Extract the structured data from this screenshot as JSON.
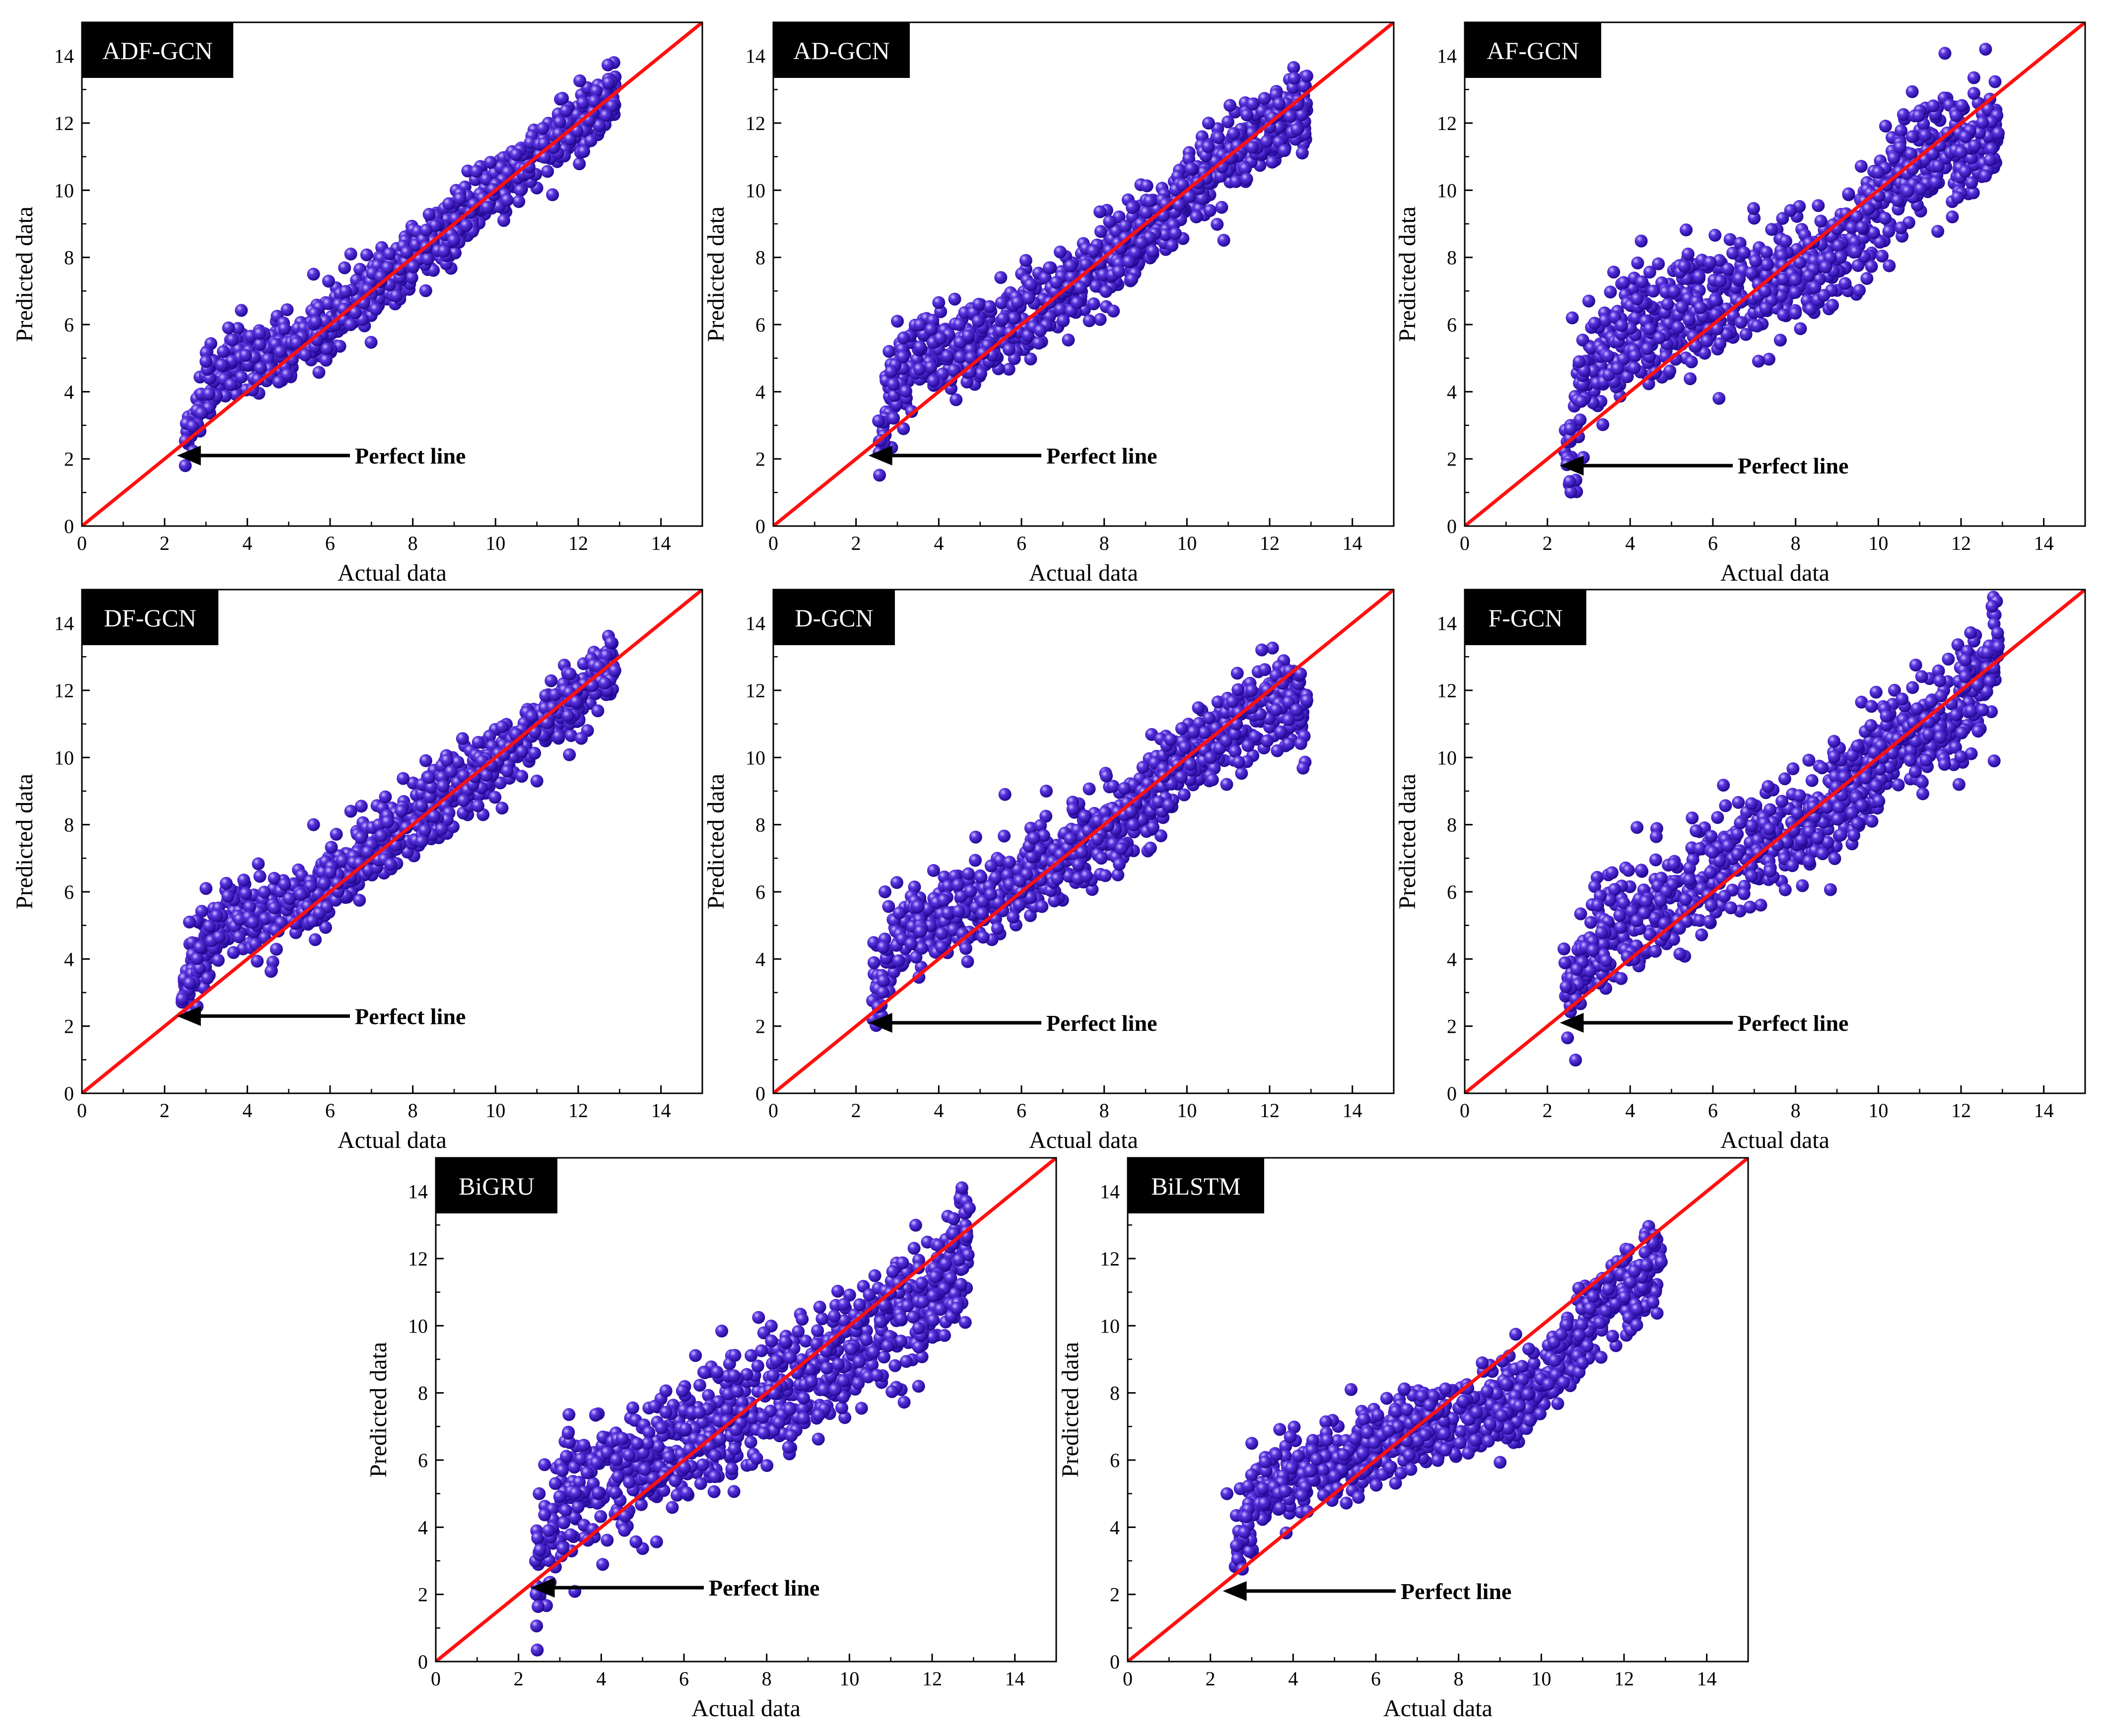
{
  "figure": {
    "arrow_label": "Perfect line",
    "marker_color": "#3a0fc0",
    "marker_highlight": "#9a8cff",
    "line_color": "#ff1010",
    "text_color": "#000000"
  },
  "chart_data": [
    {
      "type": "scatter",
      "title": "ADF-GCN",
      "xlabel": "Actual data",
      "ylabel": "Predicted data",
      "xlim": [
        0,
        15
      ],
      "ylim": [
        0,
        15
      ],
      "xticks": [
        0,
        2,
        4,
        6,
        8,
        10,
        12,
        14
      ],
      "yticks": [
        0,
        2,
        4,
        6,
        8,
        10,
        12,
        14
      ],
      "perfect_line": [
        [
          0,
          0
        ],
        [
          15,
          15
        ]
      ],
      "annotation": {
        "text": "Perfect line",
        "arrow_tip": [
          2.3,
          2.1
        ]
      },
      "spread": 0.45,
      "outliers": [
        [
          2.5,
          1.8
        ],
        [
          5.6,
          7.5
        ],
        [
          6.5,
          8.1
        ],
        [
          10.2,
          9.1
        ],
        [
          3.0,
          4.9
        ]
      ],
      "points": [
        [
          2.5,
          2.6
        ],
        [
          3.0,
          4.2
        ],
        [
          3.5,
          4.8
        ],
        [
          4.0,
          5.0
        ],
        [
          5.0,
          5.3
        ],
        [
          6.0,
          6.0
        ],
        [
          7.0,
          7.0
        ],
        [
          8.0,
          8.0
        ],
        [
          9.0,
          9.0
        ],
        [
          10.0,
          10.0
        ],
        [
          11.0,
          11.1
        ],
        [
          12.0,
          12.0
        ],
        [
          12.9,
          13.0
        ]
      ]
    },
    {
      "type": "scatter",
      "title": "AD-GCN",
      "xlabel": "Actual data",
      "ylabel": "Predicted data",
      "xlim": [
        0,
        15
      ],
      "ylim": [
        0,
        15
      ],
      "xticks": [
        0,
        2,
        4,
        6,
        8,
        10,
        12,
        14
      ],
      "yticks": [
        0,
        2,
        4,
        6,
        8,
        10,
        12,
        14
      ],
      "perfect_line": [
        [
          0,
          0
        ],
        [
          15,
          15
        ]
      ],
      "annotation": {
        "text": "Perfect line",
        "arrow_tip": [
          2.3,
          2.1
        ]
      },
      "spread": 0.6,
      "outliers": [
        [
          2.8,
          5.2
        ],
        [
          3.0,
          6.1
        ],
        [
          5.5,
          7.4
        ],
        [
          12.9,
          13.4
        ],
        [
          12.5,
          12.2
        ]
      ],
      "points": [
        [
          2.5,
          2.4
        ],
        [
          3.0,
          4.5
        ],
        [
          3.5,
          5.0
        ],
        [
          4.0,
          5.2
        ],
        [
          5.0,
          5.6
        ],
        [
          6.0,
          6.2
        ],
        [
          7.0,
          7.0
        ],
        [
          8.0,
          7.9
        ],
        [
          9.0,
          8.9
        ],
        [
          10.0,
          10.0
        ],
        [
          11.0,
          11.0
        ],
        [
          12.0,
          12.0
        ],
        [
          12.9,
          12.3
        ]
      ]
    },
    {
      "type": "scatter",
      "title": "AF-GCN",
      "xlabel": "Actual data",
      "ylabel": "Predicted data",
      "xlim": [
        0,
        15
      ],
      "ylim": [
        0,
        15
      ],
      "xticks": [
        0,
        2,
        4,
        6,
        8,
        10,
        12,
        14
      ],
      "yticks": [
        0,
        2,
        4,
        6,
        8,
        10,
        12,
        14
      ],
      "perfect_line": [
        [
          0,
          0
        ],
        [
          15,
          15
        ]
      ],
      "annotation": {
        "text": "Perfect line",
        "arrow_tip": [
          2.3,
          1.8
        ]
      },
      "spread": 0.85,
      "outliers": [
        [
          2.6,
          6.2
        ],
        [
          3.0,
          6.7
        ],
        [
          5.4,
          8.1
        ],
        [
          12.9,
          11.7
        ],
        [
          12.7,
          10.9
        ]
      ],
      "points": [
        [
          2.4,
          1.8
        ],
        [
          3.0,
          4.5
        ],
        [
          3.5,
          5.5
        ],
        [
          4.0,
          5.8
        ],
        [
          5.0,
          6.1
        ],
        [
          6.0,
          6.8
        ],
        [
          7.0,
          7.2
        ],
        [
          8.0,
          7.5
        ],
        [
          9.0,
          8.2
        ],
        [
          10.0,
          9.6
        ],
        [
          11.0,
          10.9
        ],
        [
          12.0,
          11.3
        ],
        [
          12.9,
          11.6
        ]
      ]
    },
    {
      "type": "scatter",
      "title": "DF-GCN",
      "xlabel": "Actual data",
      "ylabel": "Predicted data",
      "xlim": [
        0,
        15
      ],
      "ylim": [
        0,
        15
      ],
      "xticks": [
        0,
        2,
        4,
        6,
        8,
        10,
        12,
        14
      ],
      "yticks": [
        0,
        2,
        4,
        6,
        8,
        10,
        12,
        14
      ],
      "perfect_line": [
        [
          0,
          0
        ],
        [
          15,
          15
        ]
      ],
      "annotation": {
        "text": "Perfect line",
        "arrow_tip": [
          2.3,
          2.3
        ]
      },
      "spread": 0.55,
      "outliers": [
        [
          2.6,
          5.1
        ],
        [
          3.0,
          6.1
        ],
        [
          5.6,
          8.0
        ],
        [
          6.5,
          8.4
        ],
        [
          11.0,
          9.3
        ]
      ],
      "points": [
        [
          2.4,
          2.9
        ],
        [
          3.0,
          4.4
        ],
        [
          3.5,
          5.0
        ],
        [
          4.0,
          5.1
        ],
        [
          5.0,
          5.5
        ],
        [
          6.0,
          6.2
        ],
        [
          7.0,
          7.2
        ],
        [
          8.0,
          8.2
        ],
        [
          9.0,
          9.1
        ],
        [
          10.0,
          10.0
        ],
        [
          11.0,
          11.0
        ],
        [
          12.0,
          11.8
        ],
        [
          12.9,
          12.8
        ]
      ]
    },
    {
      "type": "scatter",
      "title": "D-GCN",
      "xlabel": "Actual data",
      "ylabel": "Predicted data",
      "xlim": [
        0,
        15
      ],
      "ylim": [
        0,
        15
      ],
      "xticks": [
        0,
        2,
        4,
        6,
        8,
        10,
        12,
        14
      ],
      "yticks": [
        0,
        2,
        4,
        6,
        8,
        10,
        12,
        14
      ],
      "perfect_line": [
        [
          0,
          0
        ],
        [
          15,
          15
        ]
      ],
      "annotation": {
        "text": "Perfect line",
        "arrow_tip": [
          2.3,
          2.1
        ]
      },
      "spread": 0.65,
      "outliers": [
        [
          2.7,
          6.0
        ],
        [
          5.6,
          8.9
        ],
        [
          6.6,
          9.0
        ],
        [
          6.3,
          7.6
        ],
        [
          12.9,
          11.7
        ]
      ],
      "points": [
        [
          2.4,
          2.8
        ],
        [
          3.0,
          4.6
        ],
        [
          3.5,
          5.0
        ],
        [
          4.0,
          5.2
        ],
        [
          5.0,
          5.6
        ],
        [
          6.0,
          6.3
        ],
        [
          7.0,
          7.0
        ],
        [
          8.0,
          7.8
        ],
        [
          9.0,
          8.8
        ],
        [
          10.0,
          9.8
        ],
        [
          11.0,
          10.8
        ],
        [
          12.0,
          11.6
        ],
        [
          12.9,
          11.7
        ]
      ]
    },
    {
      "type": "scatter",
      "title": "F-GCN",
      "xlabel": "Actual data",
      "ylabel": "Predicted data",
      "xlim": [
        0,
        15
      ],
      "ylim": [
        0,
        15
      ],
      "xticks": [
        0,
        2,
        4,
        6,
        8,
        10,
        12,
        14
      ],
      "yticks": [
        0,
        2,
        4,
        6,
        8,
        10,
        12,
        14
      ],
      "perfect_line": [
        [
          0,
          0
        ],
        [
          15,
          15
        ]
      ],
      "annotation": {
        "text": "Perfect line",
        "arrow_tip": [
          2.3,
          2.1
        ]
      },
      "spread": 0.8,
      "outliers": [
        [
          2.4,
          4.3
        ],
        [
          5.5,
          8.2
        ],
        [
          12.9,
          13.3
        ],
        [
          12.8,
          9.9
        ],
        [
          11.5,
          10.6
        ]
      ],
      "points": [
        [
          2.4,
          2.6
        ],
        [
          3.0,
          4.3
        ],
        [
          3.5,
          5.0
        ],
        [
          4.0,
          5.2
        ],
        [
          5.0,
          5.8
        ],
        [
          6.0,
          6.5
        ],
        [
          7.0,
          7.4
        ],
        [
          8.0,
          7.8
        ],
        [
          9.0,
          8.6
        ],
        [
          10.0,
          10.0
        ],
        [
          11.0,
          10.8
        ],
        [
          12.0,
          11.5
        ],
        [
          12.9,
          13.3
        ]
      ]
    },
    {
      "type": "scatter",
      "title": "BiGRU",
      "xlabel": "Actual data",
      "ylabel": "Predicted data",
      "xlim": [
        0,
        15
      ],
      "ylim": [
        0,
        15
      ],
      "xticks": [
        0,
        2,
        4,
        6,
        8,
        10,
        12,
        14
      ],
      "yticks": [
        0,
        2,
        4,
        6,
        8,
        10,
        12,
        14
      ],
      "perfect_line": [
        [
          0,
          0
        ],
        [
          15,
          15
        ]
      ],
      "annotation": {
        "text": "Perfect line",
        "arrow_tip": [
          2.3,
          2.2
        ]
      },
      "spread": 0.9,
      "outliers": [
        [
          2.5,
          5.0
        ],
        [
          3.2,
          6.8
        ],
        [
          6.5,
          8.6
        ],
        [
          12.9,
          13.5
        ],
        [
          12.8,
          10.1
        ]
      ],
      "points": [
        [
          2.4,
          2.3
        ],
        [
          3.0,
          4.7
        ],
        [
          3.5,
          5.2
        ],
        [
          4.0,
          5.4
        ],
        [
          5.0,
          5.9
        ],
        [
          6.0,
          6.5
        ],
        [
          7.0,
          7.2
        ],
        [
          8.0,
          7.8
        ],
        [
          9.0,
          8.4
        ],
        [
          10.0,
          9.2
        ],
        [
          11.0,
          10.0
        ],
        [
          12.0,
          10.8
        ],
        [
          12.9,
          12.4
        ]
      ]
    },
    {
      "type": "scatter",
      "title": "BiLSTM",
      "xlabel": "Actual data",
      "ylabel": "Predicted data",
      "xlim": [
        0,
        15
      ],
      "ylim": [
        0,
        15
      ],
      "xticks": [
        0,
        2,
        4,
        6,
        8,
        10,
        12,
        14
      ],
      "yticks": [
        0,
        2,
        4,
        6,
        8,
        10,
        12,
        14
      ],
      "perfect_line": [
        [
          0,
          0
        ],
        [
          15,
          15
        ]
      ],
      "annotation": {
        "text": "Perfect line",
        "arrow_tip": [
          2.3,
          2.1
        ]
      },
      "spread": 0.6,
      "outliers": [
        [
          2.4,
          5.0
        ],
        [
          3.0,
          6.5
        ],
        [
          12.9,
          11.9
        ],
        [
          12.7,
          10.7
        ]
      ],
      "points": [
        [
          2.5,
          2.8
        ],
        [
          3.0,
          4.6
        ],
        [
          3.5,
          5.2
        ],
        [
          4.0,
          5.5
        ],
        [
          5.0,
          6.0
        ],
        [
          6.0,
          6.5
        ],
        [
          7.0,
          7.0
        ],
        [
          8.0,
          7.2
        ],
        [
          9.0,
          7.5
        ],
        [
          10.0,
          8.2
        ],
        [
          11.0,
          9.8
        ],
        [
          12.0,
          10.8
        ],
        [
          12.9,
          11.9
        ]
      ]
    }
  ]
}
